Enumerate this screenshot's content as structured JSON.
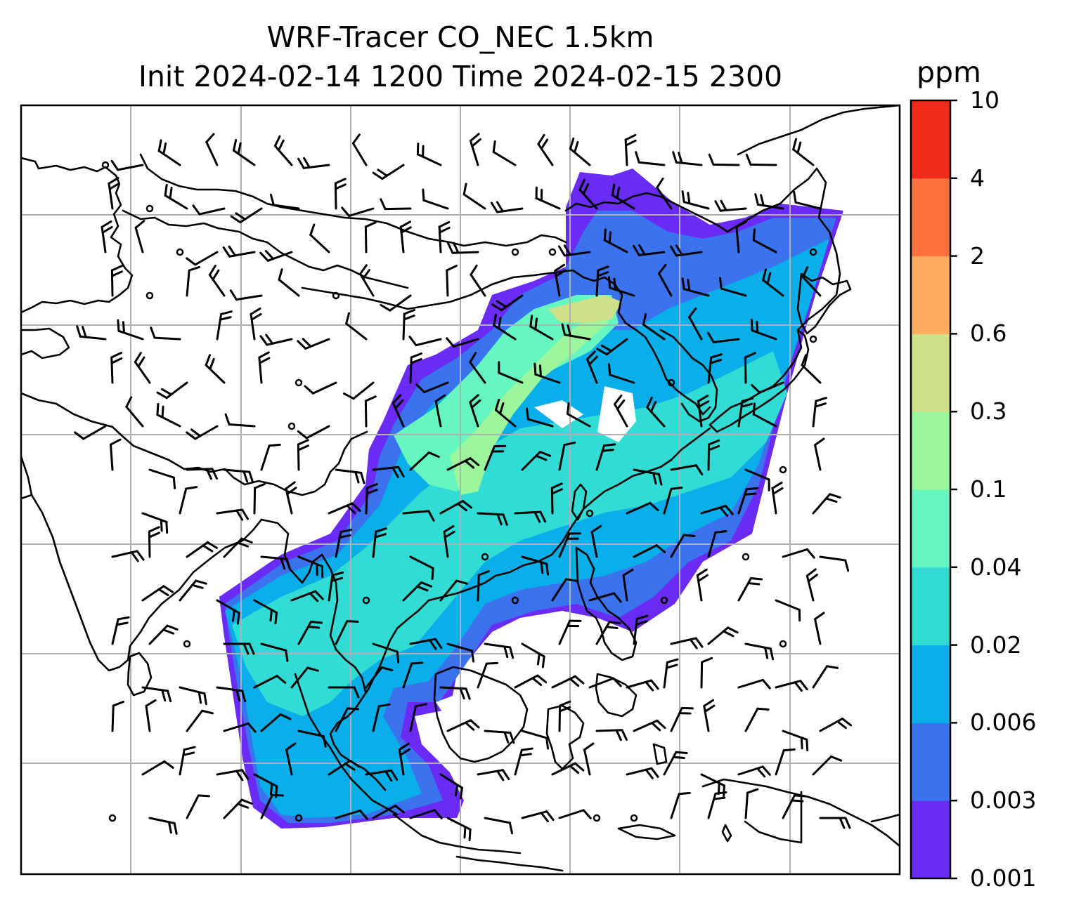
{
  "title": {
    "line1": "WRF-Tracer CO_NEC 1.5km",
    "line2": "Init 2024-02-14 1200 Time 2024-02-15 2300"
  },
  "colorbar": {
    "unit": "ppm",
    "tick_labels": [
      "0.001",
      "0.003",
      "0.006",
      "0.02",
      "0.04",
      "0.1",
      "0.3",
      "0.6",
      "2",
      "4",
      "10"
    ],
    "colors": [
      "#6a2cf5",
      "#3b73ee",
      "#0aaee8",
      "#32dbd4",
      "#66f7c0",
      "#9cf79c",
      "#cfe08a",
      "#ffac5e",
      "#ff7240",
      "#f22a1a"
    ]
  },
  "map": {
    "frame_color": "#000000",
    "gridline_color": "#b0b0b0",
    "land_outline_color": "#000000",
    "wind_barb_color": "#000000",
    "background": "#ffffff"
  }
}
